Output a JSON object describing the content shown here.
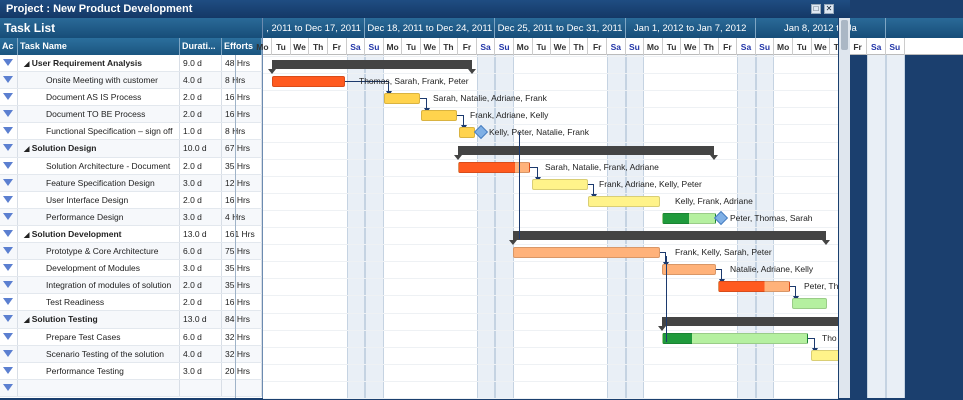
{
  "window": {
    "title": "Project : New Product Development",
    "maximize_icon": "maximize-icon",
    "close_icon": "close-icon"
  },
  "task_list": {
    "title": "Task List",
    "columns": [
      "Ac",
      "Task Name",
      "Durati...",
      "Efforts"
    ],
    "rows": [
      {
        "name": "User Requirement Analysis",
        "duration": "9.0 d",
        "efforts": "48 Hrs",
        "summary": true
      },
      {
        "name": "Onsite Meeting with customer",
        "duration": "4.0 d",
        "efforts": "8 Hrs"
      },
      {
        "name": "Document AS IS Process",
        "duration": "2.0 d",
        "efforts": "16 Hrs"
      },
      {
        "name": "Document TO BE Process",
        "duration": "2.0 d",
        "efforts": "16 Hrs"
      },
      {
        "name": "Functional Specification – sign off",
        "duration": "1.0 d",
        "efforts": "8 Hrs"
      },
      {
        "name": "Solution Design",
        "duration": "10.0 d",
        "efforts": "67 Hrs",
        "summary": true
      },
      {
        "name": "Solution Architecture - Document",
        "duration": "2.0 d",
        "efforts": "35 Hrs"
      },
      {
        "name": "Feature Specification Design",
        "duration": "3.0 d",
        "efforts": "12 Hrs"
      },
      {
        "name": "User Interface Design",
        "duration": "2.0 d",
        "efforts": "16 Hrs"
      },
      {
        "name": "Performance Design",
        "duration": "3.0 d",
        "efforts": "4 Hrs"
      },
      {
        "name": "Solution Development",
        "duration": "13.0 d",
        "efforts": "161 Hrs",
        "summary": true
      },
      {
        "name": "Prototype & Core Architecture",
        "duration": "6.0 d",
        "efforts": "75 Hrs"
      },
      {
        "name": "Development of Modules",
        "duration": "3.0 d",
        "efforts": "35 Hrs"
      },
      {
        "name": "Integration of modules of solution",
        "duration": "2.0 d",
        "efforts": "35 Hrs"
      },
      {
        "name": "Test Readiness",
        "duration": "2.0 d",
        "efforts": "16 Hrs"
      },
      {
        "name": "Solution Testing",
        "duration": "13.0 d",
        "efforts": "84 Hrs",
        "summary": true
      },
      {
        "name": "Prepare Test Cases",
        "duration": "6.0 d",
        "efforts": "32 Hrs"
      },
      {
        "name": "Scenario Testing of the solution",
        "duration": "4.0 d",
        "efforts": "32 Hrs"
      },
      {
        "name": "Performance Testing",
        "duration": "3.0 d",
        "efforts": "20 Hrs"
      },
      {
        "name": "",
        "duration": "",
        "efforts": ""
      }
    ]
  },
  "gantt": {
    "weeks": [
      ", 2011 to Dec 17, 2011",
      "Dec 18, 2011 to Dec 24, 2011",
      "Dec 25, 2011 to Dec 31, 2011",
      "Jan 1, 2012 to Jan 7, 2012",
      "Jan 8, 2012 to Ja"
    ],
    "day_names": [
      "Su",
      "Mo",
      "Tu",
      "We",
      "Th",
      "Fr",
      "Sa"
    ],
    "resources": [
      "Thomas, Sarah, Frank, Peter",
      "Sarah, Natalie, Adriane, Frank",
      "Frank, Adriane, Kelly",
      "Kelly, Peter, Natalie, Frank",
      "Sarah, Natalie, Frank, Adriane",
      "Frank, Adriane, Kelly, Peter",
      "Kelly, Frank, Adriane",
      "Peter, Thomas, Sarah",
      "Frank, Kelly, Sarah, Peter",
      "Natalie, Adriane, Kelly",
      "Peter, Th",
      "Tho"
    ],
    "colors": {
      "critical": "#ff5a1f",
      "progress_orange": "#ffb27a",
      "yellow": "#ffd34d",
      "light_yellow": "#fff38a",
      "green": "#1f9a3c",
      "light_green": "#b5f0a0",
      "summary": "#444444"
    }
  }
}
